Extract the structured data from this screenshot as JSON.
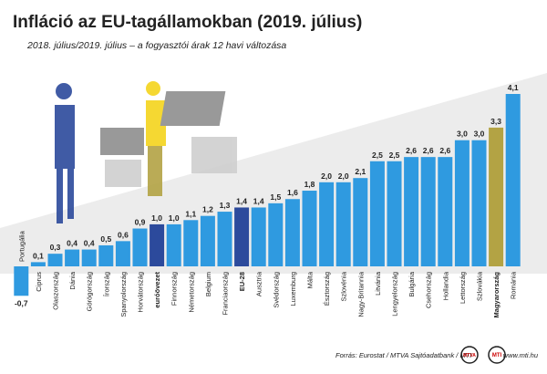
{
  "chart_data": {
    "type": "bar",
    "title": "Infláció az EU-tagállamokban (2019. július)",
    "subtitle": "2018. július/2019. július – a fogyasztói árak 12 havi változása",
    "categories": [
      "Portugália",
      "Ciprus",
      "Olaszország",
      "Dánia",
      "Görögország",
      "Írország",
      "Spanyolország",
      "Horvátország",
      "euróövezet",
      "Finnország",
      "Németország",
      "Belgium",
      "Franciaország",
      "EU-28",
      "Ausztria",
      "Svédország",
      "Luxemburg",
      "Málta",
      "Észtország",
      "Szlovénia",
      "Nagy-Britannia",
      "Litvánia",
      "Lengyelország",
      "Bulgária",
      "Csehország",
      "Hollandia",
      "Lettország",
      "Szlovákia",
      "Magyarország",
      "Románia"
    ],
    "values": [
      -0.7,
      0.1,
      0.3,
      0.4,
      0.4,
      0.5,
      0.6,
      0.9,
      1.0,
      1.0,
      1.1,
      1.2,
      1.3,
      1.4,
      1.4,
      1.5,
      1.6,
      1.8,
      2.0,
      2.0,
      2.1,
      2.5,
      2.5,
      2.6,
      2.6,
      2.6,
      3.0,
      3.0,
      3.3,
      4.1
    ],
    "value_labels": [
      "-0,7",
      "0,1",
      "0,3",
      "0,4",
      "0,4",
      "0,5",
      "0,6",
      "0,9",
      "1,0",
      "1,0",
      "1,1",
      "1,2",
      "1,3",
      "1,4",
      "1,4",
      "1,5",
      "1,6",
      "1,8",
      "2,0",
      "2,0",
      "2,1",
      "2,5",
      "2,5",
      "2,6",
      "2,6",
      "2,6",
      "3,0",
      "3,0",
      "3,3",
      "4,1"
    ],
    "color": "#2f9ae0",
    "colors": [
      "#2f9ae0",
      "#2f9ae0",
      "#2f9ae0",
      "#2f9ae0",
      "#2f9ae0",
      "#2f9ae0",
      "#2f9ae0",
      "#2f9ae0",
      "#2c4a9c",
      "#2f9ae0",
      "#2f9ae0",
      "#2f9ae0",
      "#2f9ae0",
      "#2c4a9c",
      "#2f9ae0",
      "#2f9ae0",
      "#2f9ae0",
      "#2f9ae0",
      "#2f9ae0",
      "#2f9ae0",
      "#2f9ae0",
      "#2f9ae0",
      "#2f9ae0",
      "#2f9ae0",
      "#2f9ae0",
      "#2f9ae0",
      "#2f9ae0",
      "#2f9ae0",
      "#b3a344",
      "#2f9ae0"
    ],
    "source": "Forrás: Eurostat / MTVA Sajtóadatbank / MTI",
    "logos": [
      "MTVA",
      "MTI"
    ],
    "website": "www.mti.hu"
  }
}
